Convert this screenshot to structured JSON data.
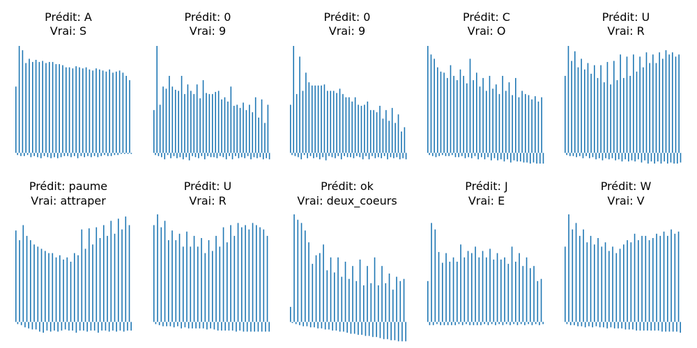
{
  "chart_data": [
    {
      "type": "bar",
      "title_pred": "Prédit: A",
      "title_true": "Vrai: S",
      "color": "#1f77b4",
      "values": [
        62,
        0.5,
        -3,
        -3,
        -2,
        -6,
        -2,
        -4,
        -3,
        -3,
        -3,
        -5,
        -3,
        -3,
        -3,
        -3,
        -4,
        -3,
        -5,
        -5,
        -3,
        -3,
        -4,
        -3,
        -3,
        -4,
        -2,
        -5,
        -3,
        -2,
        -2,
        -2
      ],
      "v_top": [
        62,
        100,
        97,
        81,
        88,
        84,
        87,
        85,
        86,
        84,
        85,
        85,
        83,
        83,
        82,
        80,
        80
      ]
    },
    {
      "type": "bar",
      "values": []
    }
  ]
}
